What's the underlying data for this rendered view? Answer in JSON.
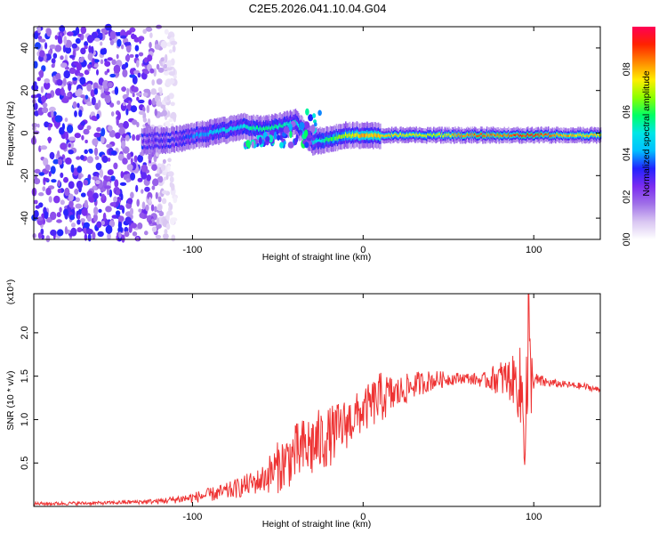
{
  "title": "C2E5.2026.041.10.04.G04",
  "colors": {
    "snr_line": "#ee3333",
    "frame": "#000000",
    "colormap": [
      "#ffffff",
      "#d9c6f2",
      "#a070e8",
      "#7b2cf0",
      "#2222ff",
      "#00c0ff",
      "#00e6e6",
      "#00ff66",
      "#8cff00",
      "#ffee00",
      "#ff8800",
      "#ff2200",
      "#ff0055"
    ]
  },
  "chart_data": [
    {
      "type": "heatmap",
      "title": "",
      "xlabel": "Height of straight line (km)",
      "ylabel": "Frequency (Hz)",
      "xlim": [
        -193,
        139
      ],
      "ylim": [
        -50,
        50
      ],
      "xticks": [
        -100,
        0,
        100
      ],
      "xtick_labels": [
        "-100",
        "0",
        "100"
      ],
      "yticks": [
        40,
        20,
        0,
        -20,
        -40
      ],
      "ytick_labels": [
        "40",
        "20",
        "0",
        "-20",
        "-40"
      ],
      "colorbar": {
        "label": "Normalized spectral amplitude",
        "range": [
          0,
          1
        ],
        "ticks": [
          0.0,
          0.2,
          0.4,
          0.6,
          0.8
        ],
        "tick_labels": [
          "0.0",
          "0.2",
          "0.4",
          "0.6",
          "0.8"
        ]
      },
      "ridge": {
        "description_points_height_km": [
          -130,
          -110,
          -90,
          -70,
          -60,
          -50,
          -40,
          -30,
          -20,
          -10,
          0,
          20,
          40,
          60,
          80,
          100,
          120,
          139
        ],
        "center_freq_hz": [
          -4,
          -3,
          0,
          3,
          2,
          3,
          5,
          -4,
          -3,
          -1,
          -1,
          -1,
          -1,
          -1,
          -1,
          -1,
          -1,
          -1
        ],
        "amplitude": [
          0.25,
          0.3,
          0.45,
          0.5,
          0.55,
          0.55,
          0.5,
          0.45,
          0.6,
          0.7,
          0.8,
          0.75,
          0.7,
          0.85,
          0.85,
          0.9,
          0.8,
          0.75
        ]
      },
      "noise_region_km": [
        -193,
        -110
      ]
    },
    {
      "type": "line",
      "title": "",
      "xlabel": "Height of straight line (km)",
      "ylabel": "SNR (10 * v/v)",
      "y_scale_note": "(x10⁴)",
      "xlim": [
        -193,
        139
      ],
      "ylim": [
        0,
        2.45
      ],
      "xticks": [
        -100,
        0,
        100
      ],
      "xtick_labels": [
        "-100",
        "0",
        "100"
      ],
      "yticks": [
        0.5,
        1.0,
        1.5,
        2.0
      ],
      "ytick_labels": [
        "0.5",
        "1.0",
        "1.5",
        "2.0"
      ],
      "series": [
        {
          "name": "SNR",
          "envelope_x_km": [
            -193,
            -150,
            -120,
            -100,
            -80,
            -60,
            -50,
            -40,
            -30,
            -20,
            -10,
            0,
            10,
            20,
            30,
            40,
            50,
            60,
            70,
            80,
            90,
            95,
            97,
            100,
            110,
            120,
            130,
            139
          ],
          "envelope_mean": [
            0.03,
            0.04,
            0.06,
            0.1,
            0.17,
            0.3,
            0.45,
            0.6,
            0.7,
            0.8,
            0.95,
            1.1,
            1.25,
            1.3,
            1.4,
            1.45,
            1.47,
            1.48,
            1.45,
            1.48,
            1.45,
            1.1,
            1.5,
            1.45,
            1.42,
            1.4,
            1.38,
            1.34
          ],
          "envelope_spread": [
            0.02,
            0.02,
            0.03,
            0.06,
            0.1,
            0.15,
            0.3,
            0.35,
            0.4,
            0.35,
            0.3,
            0.25,
            0.3,
            0.2,
            0.15,
            0.12,
            0.08,
            0.06,
            0.08,
            0.2,
            0.3,
            0.9,
            0.8,
            0.1,
            0.05,
            0.04,
            0.04,
            0.03
          ],
          "peak_value": 2.45,
          "peak_x_km": 97
        }
      ]
    }
  ]
}
